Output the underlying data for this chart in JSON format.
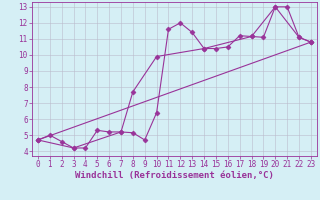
{
  "xlabel": "Windchill (Refroidissement éolien,°C)",
  "xlim": [
    -0.5,
    23.5
  ],
  "ylim": [
    3.7,
    13.3
  ],
  "xticks": [
    0,
    1,
    2,
    3,
    4,
    5,
    6,
    7,
    8,
    9,
    10,
    11,
    12,
    13,
    14,
    15,
    16,
    17,
    18,
    19,
    20,
    21,
    22,
    23
  ],
  "yticks": [
    4,
    5,
    6,
    7,
    8,
    9,
    10,
    11,
    12,
    13
  ],
  "bg_color": "#d5eff5",
  "line_color": "#993399",
  "grid_color": "#bbbbcc",
  "line1_x": [
    0,
    1,
    2,
    3,
    4,
    5,
    6,
    7,
    8,
    9,
    10,
    11,
    12,
    13,
    14,
    15,
    16,
    17,
    18,
    19,
    20,
    21,
    22,
    23
  ],
  "line1_y": [
    4.7,
    5.0,
    4.6,
    4.2,
    4.2,
    5.3,
    5.2,
    5.2,
    5.15,
    4.7,
    6.4,
    11.6,
    12.0,
    11.4,
    10.4,
    10.4,
    10.5,
    11.2,
    11.15,
    11.1,
    13.0,
    13.0,
    11.1,
    10.8
  ],
  "line2_x": [
    0,
    3,
    7,
    8,
    10,
    14,
    18,
    20,
    22,
    23
  ],
  "line2_y": [
    4.7,
    4.2,
    5.2,
    7.7,
    9.9,
    10.4,
    11.15,
    13.0,
    11.1,
    10.8
  ],
  "line3_x": [
    0,
    23
  ],
  "line3_y": [
    4.7,
    10.8
  ],
  "marker": "D",
  "markersize": 2.5,
  "linewidth": 0.8,
  "tick_fontsize": 5.5,
  "xlabel_fontsize": 6.5,
  "figsize": [
    3.2,
    2.0
  ],
  "dpi": 100
}
